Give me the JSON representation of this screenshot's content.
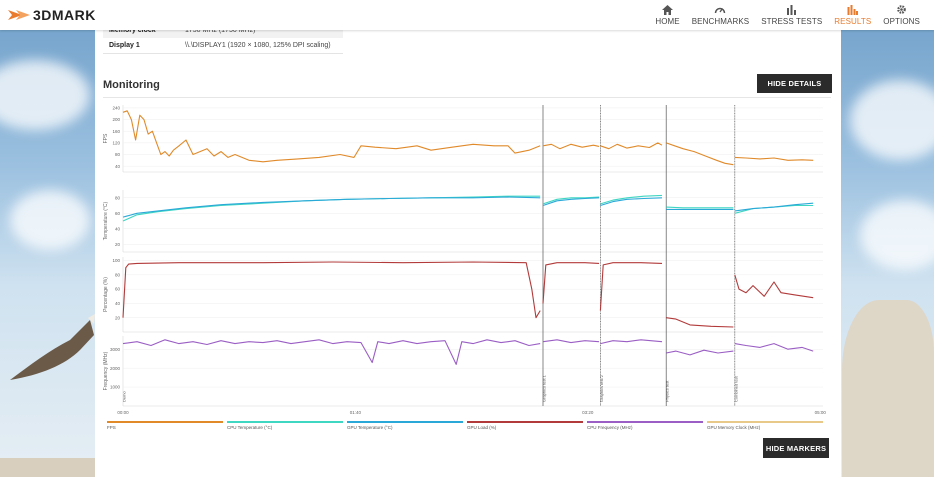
{
  "app": {
    "logo_text": "3DMARK"
  },
  "nav": [
    {
      "label": "HOME",
      "icon": "home-icon",
      "active": false
    },
    {
      "label": "BENCHMARKS",
      "icon": "gauge-icon",
      "active": false
    },
    {
      "label": "STRESS TESTS",
      "icon": "bar-chart-icon",
      "active": false
    },
    {
      "label": "RESULTS",
      "icon": "results-icon",
      "active": true
    },
    {
      "label": "OPTIONS",
      "icon": "gear-icon",
      "active": false
    }
  ],
  "info": {
    "memory_clock_label": "Memory clock",
    "memory_clock_value": "1750 MHz (1750 MHz)",
    "display_label": "Display 1",
    "display_value": "\\\\.\\DISPLAY1 (1920 × 1080, 125% DPI scaling)"
  },
  "monitoring": {
    "title": "Monitoring",
    "hide_details_label": "HIDE DETAILS",
    "hide_markers_label": "HIDE MARKERS"
  },
  "colors": {
    "accent": "#ea7b2d",
    "fps": "#e08a2a",
    "cpu_temp": "#3fd6c2",
    "gpu_temp": "#2aa9d8",
    "gpu_load": "#b23a3a",
    "cpu_freq": "#9a5ec4",
    "gpu_mem_clock": "#e8c98a"
  },
  "chart_data": {
    "type": "line",
    "x_ticks": [
      "00:00",
      "01:40",
      "03:20",
      "05:00"
    ],
    "markers": [
      "Demo",
      "Graphics test 1",
      "Graphics test 2",
      "Physics test",
      "Combined test"
    ],
    "legend": [
      "FPS",
      "CPU Temperature (°C)",
      "GPU Temperature (°C)",
      "GPU Load (%)",
      "CPU Frequency (MHz)",
      "GPU Memory Clock (MHz)"
    ],
    "panels": [
      {
        "ylabel": "FPS",
        "ticks": [
          240,
          200,
          160,
          120,
          80,
          40
        ],
        "ylim": [
          20,
          250
        ]
      },
      {
        "ylabel": "Temperature (°C)",
        "ticks": [
          80,
          60,
          40,
          20
        ],
        "ylim": [
          10,
          90
        ]
      },
      {
        "ylabel": "Percentage (%)",
        "ticks": [
          100,
          80,
          60,
          40,
          20
        ],
        "ylim": [
          0,
          105
        ]
      },
      {
        "ylabel": "Frequency (MHz)",
        "ticks": [
          3000,
          2000,
          1000
        ],
        "ylim": [
          0,
          3700
        ]
      }
    ],
    "series": [
      {
        "name": "FPS",
        "panel": 0,
        "segments": [
          [
            [
              0,
              225
            ],
            [
              3,
              230
            ],
            [
              6,
              200
            ],
            [
              9,
              130
            ],
            [
              12,
              215
            ],
            [
              15,
              200
            ],
            [
              18,
              150
            ],
            [
              21,
              160
            ],
            [
              24,
              120
            ],
            [
              27,
              80
            ],
            [
              30,
              90
            ],
            [
              33,
              75
            ],
            [
              36,
              95
            ],
            [
              40,
              110
            ],
            [
              45,
              130
            ],
            [
              50,
              80
            ],
            [
              55,
              90
            ],
            [
              60,
              100
            ],
            [
              65,
              75
            ],
            [
              70,
              90
            ],
            [
              75,
              70
            ],
            [
              80,
              80
            ],
            [
              90,
              60
            ],
            [
              100,
              55
            ],
            [
              110,
              60
            ],
            [
              125,
              65
            ],
            [
              140,
              70
            ],
            [
              155,
              80
            ],
            [
              165,
              70
            ],
            [
              170,
              110
            ],
            [
              180,
              105
            ],
            [
              195,
              100
            ],
            [
              210,
              110
            ],
            [
              220,
              95
            ],
            [
              235,
              105
            ],
            [
              250,
              115
            ],
            [
              265,
              110
            ],
            [
              275,
              110
            ],
            [
              280,
              85
            ],
            [
              290,
              95
            ],
            [
              298,
              110
            ]
          ],
          [
            [
              300,
              110
            ],
            [
              306,
              115
            ],
            [
              312,
              100
            ],
            [
              320,
              115
            ],
            [
              328,
              105
            ],
            [
              336,
              112
            ],
            [
              340,
              108
            ]
          ],
          [
            [
              341,
              110
            ],
            [
              347,
              100
            ],
            [
              353,
              115
            ],
            [
              360,
              102
            ],
            [
              368,
              110
            ],
            [
              376,
              104
            ],
            [
              382,
              120
            ],
            [
              385,
              112
            ]
          ],
          [
            [
              388,
              120
            ],
            [
              394,
              110
            ],
            [
              400,
              100
            ],
            [
              408,
              90
            ],
            [
              416,
              75
            ],
            [
              424,
              60
            ],
            [
              430,
              50
            ],
            [
              436,
              45
            ]
          ],
          [
            [
              437,
              70
            ],
            [
              445,
              68
            ],
            [
              455,
              65
            ],
            [
              465,
              68
            ],
            [
              475,
              60
            ],
            [
              485,
              62
            ],
            [
              493,
              60
            ]
          ]
        ]
      },
      {
        "name": "CPU Temperature (°C)",
        "panel": 1,
        "segments": [
          [
            [
              0,
              50
            ],
            [
              10,
              58
            ],
            [
              25,
              62
            ],
            [
              45,
              66
            ],
            [
              70,
              70
            ],
            [
              100,
              73
            ],
            [
              130,
              76
            ],
            [
              160,
              78
            ],
            [
              190,
              79
            ],
            [
              220,
              80
            ],
            [
              250,
              81
            ],
            [
              275,
              82
            ],
            [
              298,
              82
            ]
          ],
          [
            [
              300,
              72
            ],
            [
              310,
              78
            ],
            [
              320,
              80
            ],
            [
              330,
              80
            ],
            [
              340,
              81
            ]
          ],
          [
            [
              341,
              72
            ],
            [
              350,
              77
            ],
            [
              360,
              80
            ],
            [
              372,
              82
            ],
            [
              385,
              83
            ]
          ],
          [
            [
              388,
              68
            ],
            [
              400,
              67
            ],
            [
              415,
              67
            ],
            [
              436,
              67
            ]
          ],
          [
            [
              437,
              60
            ],
            [
              450,
              66
            ],
            [
              465,
              68
            ],
            [
              480,
              70
            ],
            [
              493,
              70
            ]
          ]
        ]
      },
      {
        "name": "GPU Temperature (°C)",
        "panel": 1,
        "segments": [
          [
            [
              0,
              55
            ],
            [
              10,
              60
            ],
            [
              25,
              63
            ],
            [
              45,
              67
            ],
            [
              70,
              71
            ],
            [
              100,
              74
            ],
            [
              130,
              76
            ],
            [
              160,
              78
            ],
            [
              190,
              79
            ],
            [
              220,
              80
            ],
            [
              250,
              80
            ],
            [
              275,
              81
            ],
            [
              298,
              80
            ]
          ],
          [
            [
              300,
              70
            ],
            [
              310,
              76
            ],
            [
              320,
              78
            ],
            [
              330,
              79
            ],
            [
              340,
              80
            ]
          ],
          [
            [
              341,
              70
            ],
            [
              350,
              75
            ],
            [
              360,
              78
            ],
            [
              372,
              79
            ],
            [
              385,
              80
            ]
          ],
          [
            [
              388,
              65
            ],
            [
              400,
              65
            ],
            [
              415,
              65
            ],
            [
              436,
              65
            ]
          ],
          [
            [
              437,
              63
            ],
            [
              450,
              66
            ],
            [
              465,
              68
            ],
            [
              480,
              71
            ],
            [
              493,
              73
            ]
          ]
        ]
      },
      {
        "name": "GPU Load (%)",
        "panel": 2,
        "segments": [
          [
            [
              0,
              20
            ],
            [
              2,
              90
            ],
            [
              4,
              95
            ],
            [
              10,
              96
            ],
            [
              40,
              97
            ],
            [
              100,
              97
            ],
            [
              150,
              98
            ],
            [
              200,
              97
            ],
            [
              250,
              98
            ],
            [
              288,
              97
            ],
            [
              292,
              60
            ],
            [
              295,
              20
            ],
            [
              298,
              30
            ]
          ],
          [
            [
              300,
              40
            ],
            [
              302,
              94
            ],
            [
              310,
              97
            ],
            [
              330,
              97
            ],
            [
              340,
              96
            ]
          ],
          [
            [
              341,
              30
            ],
            [
              343,
              94
            ],
            [
              350,
              97
            ],
            [
              370,
              97
            ],
            [
              385,
              96
            ]
          ],
          [
            [
              388,
              20
            ],
            [
              395,
              18
            ],
            [
              405,
              10
            ],
            [
              420,
              8
            ],
            [
              436,
              7
            ]
          ],
          [
            [
              437,
              80
            ],
            [
              440,
              60
            ],
            [
              445,
              55
            ],
            [
              450,
              65
            ],
            [
              458,
              50
            ],
            [
              465,
              70
            ],
            [
              470,
              55
            ],
            [
              480,
              52
            ],
            [
              493,
              48
            ]
          ]
        ]
      },
      {
        "name": "CPU Frequency (MHz)",
        "panel": 3,
        "segments": [
          [
            [
              0,
              3300
            ],
            [
              10,
              3400
            ],
            [
              20,
              3200
            ],
            [
              30,
              3500
            ],
            [
              40,
              3300
            ],
            [
              50,
              3400
            ],
            [
              60,
              3250
            ],
            [
              70,
              3450
            ],
            [
              80,
              3300
            ],
            [
              90,
              3400
            ],
            [
              100,
              3350
            ],
            [
              110,
              3450
            ],
            [
              120,
              3300
            ],
            [
              130,
              3400
            ],
            [
              140,
              3500
            ],
            [
              150,
              3300
            ],
            [
              160,
              3400
            ],
            [
              170,
              3350
            ],
            [
              178,
              2300
            ],
            [
              182,
              3400
            ],
            [
              190,
              3300
            ],
            [
              200,
              3450
            ],
            [
              210,
              3300
            ],
            [
              220,
              3400
            ],
            [
              230,
              3450
            ],
            [
              238,
              2200
            ],
            [
              242,
              3400
            ],
            [
              250,
              3300
            ],
            [
              260,
              3500
            ],
            [
              270,
              3350
            ],
            [
              280,
              3450
            ],
            [
              290,
              3200
            ],
            [
              298,
              3300
            ]
          ],
          [
            [
              300,
              3400
            ],
            [
              310,
              3500
            ],
            [
              320,
              3350
            ],
            [
              330,
              3450
            ],
            [
              340,
              3400
            ]
          ],
          [
            [
              341,
              3300
            ],
            [
              350,
              3450
            ],
            [
              360,
              3400
            ],
            [
              370,
              3500
            ],
            [
              385,
              3400
            ]
          ],
          [
            [
              388,
              2800
            ],
            [
              395,
              2900
            ],
            [
              405,
              2700
            ],
            [
              415,
              2950
            ],
            [
              425,
              2800
            ],
            [
              436,
              2900
            ]
          ],
          [
            [
              437,
              3300
            ],
            [
              445,
              3200
            ],
            [
              455,
              3100
            ],
            [
              465,
              3300
            ],
            [
              475,
              3000
            ],
            [
              485,
              3100
            ],
            [
              493,
              2900
            ]
          ]
        ]
      }
    ]
  }
}
